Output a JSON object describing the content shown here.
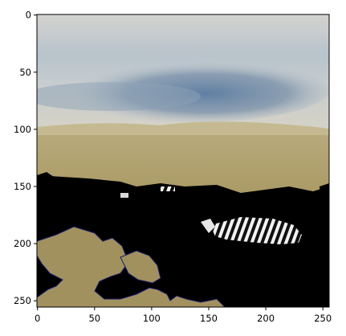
{
  "figure": {
    "image_description_icon": "masked-savanna-zebra-image-icon",
    "x_axis": {
      "ticks": [
        0,
        50,
        100,
        150,
        200,
        250
      ],
      "range": [
        0,
        255
      ]
    },
    "y_axis": {
      "ticks": [
        0,
        50,
        100,
        150,
        200,
        250
      ],
      "range": [
        0,
        255
      ],
      "inverted": true
    },
    "colors": {
      "sky_top": "#c9cdc9",
      "sky_cloud": "#6f8aa6",
      "horizon": "#c2b691",
      "grass": "#a8965c",
      "mask": "#000000",
      "mask_edge": "#1a1a5a"
    }
  }
}
